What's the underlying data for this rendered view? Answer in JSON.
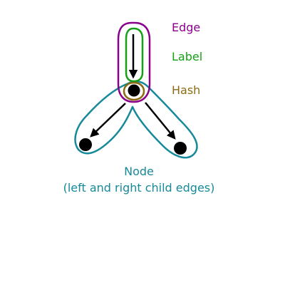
{
  "colors": {
    "edge": "#8b008b",
    "label": "#15a015",
    "hash": "#8b6b14",
    "node": "#16899a",
    "ink": "#000000"
  },
  "labels": {
    "edge": "Edge",
    "label": "Label",
    "hash": "Hash"
  },
  "node": {
    "title": "Node",
    "subtitle": "(left and right child edges)"
  }
}
